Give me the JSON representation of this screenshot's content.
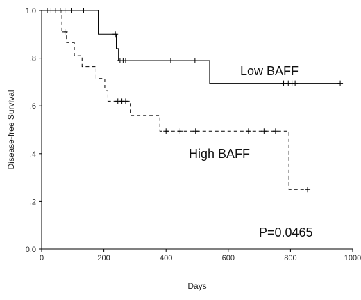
{
  "chart_data": {
    "type": "line",
    "title": "",
    "xlabel": "Days",
    "ylabel": "Disease-free Survival",
    "xlim": [
      0,
      1000
    ],
    "ylim": [
      0,
      1.0
    ],
    "x_ticks": [
      0,
      200,
      400,
      600,
      800,
      1000
    ],
    "x_tick_labels": [
      "0",
      "200",
      "400",
      "600",
      "800",
      "1000"
    ],
    "y_ticks": [
      0,
      0.2,
      0.4,
      0.6,
      0.8,
      1.0
    ],
    "y_tick_labels": [
      "0.0",
      ".2",
      ".4",
      ".6",
      ".8",
      "1.0"
    ],
    "grid": false,
    "annotation": "P=0.0465",
    "series": [
      {
        "name": "Low BAFF",
        "style": "solid",
        "color": "#000000",
        "steps": [
          [
            0,
            1.0
          ],
          [
            182,
            0.9
          ],
          [
            240,
            0.84
          ],
          [
            247,
            0.79
          ],
          [
            540,
            0.695
          ],
          [
            960,
            0.695
          ]
        ],
        "censored": [
          [
            18,
            1.0
          ],
          [
            30,
            1.0
          ],
          [
            45,
            1.0
          ],
          [
            60,
            1.0
          ],
          [
            75,
            1.0
          ],
          [
            95,
            1.0
          ],
          [
            135,
            1.0
          ],
          [
            237,
            0.9
          ],
          [
            252,
            0.79
          ],
          [
            262,
            0.79
          ],
          [
            270,
            0.79
          ],
          [
            415,
            0.79
          ],
          [
            493,
            0.79
          ],
          [
            778,
            0.695
          ],
          [
            793,
            0.695
          ],
          [
            805,
            0.695
          ],
          [
            815,
            0.695
          ],
          [
            960,
            0.695
          ]
        ]
      },
      {
        "name": "High BAFF",
        "style": "dashed",
        "color": "#000000",
        "steps": [
          [
            0,
            1.0
          ],
          [
            65,
            0.91
          ],
          [
            80,
            0.865
          ],
          [
            105,
            0.81
          ],
          [
            130,
            0.765
          ],
          [
            175,
            0.715
          ],
          [
            203,
            0.665
          ],
          [
            213,
            0.62
          ],
          [
            285,
            0.56
          ],
          [
            380,
            0.495
          ],
          [
            795,
            0.25
          ],
          [
            855,
            0.25
          ]
        ],
        "censored": [
          [
            75,
            0.91
          ],
          [
            245,
            0.62
          ],
          [
            258,
            0.62
          ],
          [
            270,
            0.62
          ],
          [
            400,
            0.495
          ],
          [
            445,
            0.495
          ],
          [
            495,
            0.495
          ],
          [
            665,
            0.495
          ],
          [
            715,
            0.495
          ],
          [
            752,
            0.495
          ],
          [
            855,
            0.25
          ]
        ]
      }
    ]
  }
}
